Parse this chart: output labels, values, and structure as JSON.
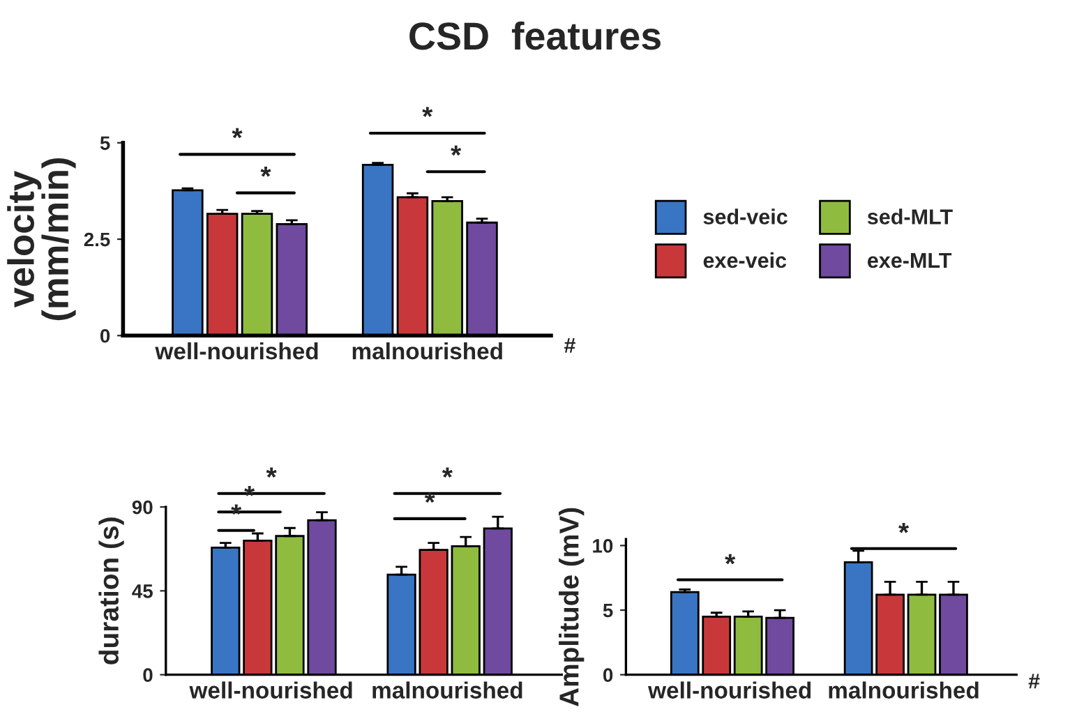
{
  "chart_data": [
    {
      "type": "bar",
      "title": "CSD  features",
      "ylabel": "velocity\n(mm/min)",
      "categories": [
        "well-nourished",
        "malnourished"
      ],
      "ylim": [
        0,
        5
      ],
      "yticks": [
        0,
        2.5,
        5
      ],
      "grid": false,
      "legend": "right",
      "series": [
        {
          "name": "sed-veic",
          "color": "#3a75c4",
          "values": [
            3.77,
            4.43
          ],
          "errors": [
            0.05,
            0.05
          ]
        },
        {
          "name": "exe-veic",
          "color": "#c8383a",
          "values": [
            3.16,
            3.59
          ],
          "errors": [
            0.1,
            0.1
          ]
        },
        {
          "name": "sed-MLT",
          "color": "#8fbc3f",
          "values": [
            3.16,
            3.49
          ],
          "errors": [
            0.07,
            0.1
          ]
        },
        {
          "name": "exe-MLT",
          "color": "#6f4a9e",
          "values": [
            2.89,
            2.93
          ],
          "errors": [
            0.1,
            0.1
          ]
        }
      ],
      "annotations": [
        "*",
        "*",
        "*",
        "*",
        "#"
      ]
    },
    {
      "type": "bar",
      "ylabel": "duration (s)",
      "categories": [
        "well-nourished",
        "malnourished"
      ],
      "ylim": [
        0,
        90
      ],
      "yticks": [
        0,
        45,
        90
      ],
      "grid": false,
      "series": [
        {
          "color": "#3a75c4",
          "values": [
            68.2,
            53.7
          ],
          "errors": [
            2.5,
            4.2
          ]
        },
        {
          "color": "#c8383a",
          "values": [
            71.9,
            67.0
          ],
          "errors": [
            3.9,
            3.7
          ]
        },
        {
          "color": "#8fbc3f",
          "values": [
            74.4,
            68.9
          ],
          "errors": [
            4.3,
            5.0
          ]
        },
        {
          "color": "#6f4a9e",
          "values": [
            82.9,
            78.5
          ],
          "errors": [
            4.3,
            6.2
          ]
        }
      ],
      "annotations": [
        "*",
        "*",
        "*",
        "*",
        "*"
      ]
    },
    {
      "type": "bar",
      "ylabel": "Amplitude (mV)",
      "categories": [
        "well-nourished",
        "malnourished"
      ],
      "ylim": [
        0,
        10.5
      ],
      "yticks": [
        0,
        5,
        10
      ],
      "grid": false,
      "series": [
        {
          "color": "#3a75c4",
          "values": [
            6.4,
            8.7
          ],
          "errors": [
            0.2,
            0.9
          ]
        },
        {
          "color": "#c8383a",
          "values": [
            4.5,
            6.2
          ],
          "errors": [
            0.3,
            1.0
          ]
        },
        {
          "color": "#8fbc3f",
          "values": [
            4.5,
            6.2
          ],
          "errors": [
            0.4,
            1.0
          ]
        },
        {
          "color": "#6f4a9e",
          "values": [
            4.4,
            6.2
          ],
          "errors": [
            0.6,
            1.0
          ]
        }
      ],
      "annotations": [
        "*",
        "*",
        "#"
      ]
    }
  ]
}
